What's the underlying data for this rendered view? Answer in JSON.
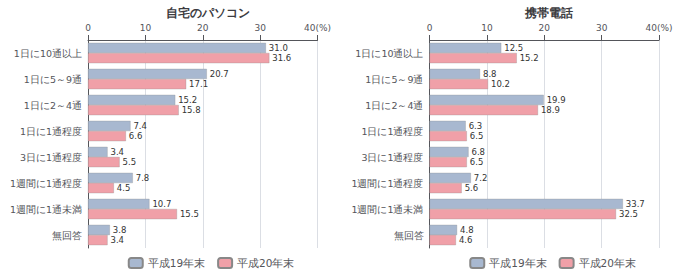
{
  "chart_data": [
    {
      "type": "bar",
      "orientation": "horizontal",
      "title": "自宅のパソコン",
      "categories": [
        "1日に10通以上",
        "1日に5～9通",
        "1日に2～4通",
        "1日に1通程度",
        "3日に1通程度",
        "1週間に1通程度",
        "1週間に1通未満",
        "無回答"
      ],
      "series": [
        {
          "name": "平成19年末",
          "color": "#a8b8d0",
          "values": [
            31.0,
            20.7,
            15.2,
            7.4,
            3.4,
            7.8,
            10.7,
            3.8
          ],
          "value_labels": [
            "31.0",
            "20.7",
            "15.2",
            "7.4",
            "3.4",
            "7.8",
            "10.7",
            "3.8"
          ]
        },
        {
          "name": "平成20年末",
          "color": "#f0a0a8",
          "values": [
            31.6,
            17.1,
            15.8,
            6.6,
            5.5,
            4.5,
            15.5,
            3.4
          ],
          "value_labels": [
            "31.6",
            "17.1",
            "15.8",
            "6.6",
            "5.5",
            "4.5",
            "15.5",
            "3.4"
          ]
        }
      ],
      "xlim": [
        0,
        40
      ],
      "xticks": [
        0,
        10,
        20,
        30,
        {
          "value": 40,
          "label": "40(%)"
        }
      ],
      "grid": true,
      "data_labels": true,
      "legend": "bottom"
    },
    {
      "type": "bar",
      "orientation": "horizontal",
      "title": "携帯電話",
      "categories": [
        "1日に10通以上",
        "1日に5～9通",
        "1日に2～4通",
        "1日に1通程度",
        "3日に1通程度",
        "1週間に1通程度",
        "1週間に1通未満",
        "無回答"
      ],
      "series": [
        {
          "name": "平成19年末",
          "color": "#a8b8d0",
          "values": [
            12.5,
            8.8,
            19.9,
            6.3,
            6.8,
            7.2,
            33.7,
            4.8
          ],
          "value_labels": [
            "12.5",
            "8.8",
            "19.9",
            "6.3",
            "6.8",
            "7.2",
            "33.7",
            "4.8"
          ]
        },
        {
          "name": "平成20年末",
          "color": "#f0a0a8",
          "values": [
            15.2,
            10.2,
            18.9,
            6.5,
            6.5,
            5.6,
            32.5,
            4.6
          ],
          "value_labels": [
            "15.2",
            "10.2",
            "18.9",
            "6.5",
            "6.5",
            "5.6",
            "32.5",
            "4.6"
          ]
        }
      ],
      "xlim": [
        0,
        40
      ],
      "xticks": [
        0,
        10,
        20,
        30,
        {
          "value": 40,
          "label": "40(%)"
        }
      ],
      "grid": true,
      "data_labels": true,
      "legend": "bottom"
    }
  ]
}
